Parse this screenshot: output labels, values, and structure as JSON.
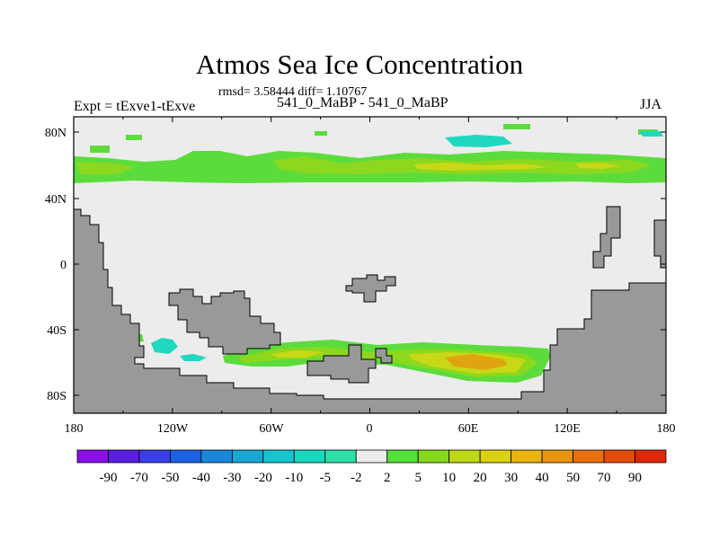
{
  "title": "Atmos Sea Ice Concentration",
  "stats": "rmsd= 3.58444 diff= 1.10767",
  "left_label": "Expt = tExve1-tExve",
  "center_label": "541_0_MaBP - 541_0_MaBP",
  "right_label": "JJA",
  "lat_ticks": [
    "80N",
    "40N",
    "0",
    "40S",
    "80S"
  ],
  "lon_ticks": [
    "180",
    "120W",
    "60W",
    "0",
    "60E",
    "120E",
    "180"
  ],
  "colorbar": {
    "labels": [
      "-90",
      "-70",
      "-50",
      "-40",
      "-30",
      "-20",
      "-10",
      "-5",
      "-2",
      "2",
      "5",
      "10",
      "20",
      "30",
      "40",
      "50",
      "70",
      "90"
    ],
    "colors": [
      "#8a10e6",
      "#5a1ee0",
      "#3a3ee6",
      "#1a62e2",
      "#1a86d8",
      "#18a8d2",
      "#16c4cc",
      "#18d8c0",
      "#2ee0a8",
      "#ececec",
      "#52e03a",
      "#86d81e",
      "#bcd816",
      "#dcd012",
      "#e8b410",
      "#e89410",
      "#e8700e",
      "#e44c0c",
      "#e0280a"
    ]
  },
  "colors": {
    "land": "#999999",
    "ocean": "#ececec",
    "green": "#5cdc3c",
    "light_green": "#8cd81e",
    "yellow": "#c8d816",
    "orange": "#e0a410",
    "teal": "#20d8c0"
  }
}
